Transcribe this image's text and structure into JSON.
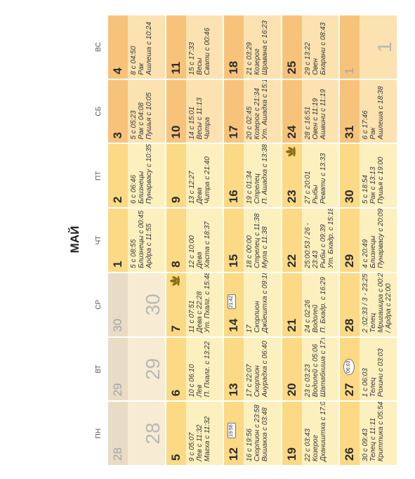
{
  "title": "МАЙ",
  "weekdays": [
    "ПН",
    "ВТ",
    "СР",
    "ЧТ",
    "ПТ",
    "СБ",
    "ВС"
  ],
  "weeks": [
    [
      {
        "num": "28",
        "grey": true,
        "big": "28"
      },
      {
        "num": "29",
        "grey": true,
        "big": "29"
      },
      {
        "num": "30",
        "grey": true,
        "big": "30"
      },
      {
        "num": "1",
        "color": "c1",
        "moon": "crescent-right",
        "lines": [
          "5 с 08:55",
          "Близнецы с 00:45",
          "Ардра с 11:55"
        ]
      },
      {
        "num": "2",
        "color": "c1",
        "moon": "crescent-right",
        "lines": [
          "6 с 06:46",
          "Близнецы",
          "Пунарвасу с 10:35"
        ]
      },
      {
        "num": "3",
        "color": "c2",
        "moon": "crescent-right",
        "lines": [
          "5 с 05:23",
          "Рак с 04:08",
          "Пушья с 10:05"
        ]
      },
      {
        "num": "4",
        "color": "c2",
        "moon": "crescent-right",
        "lines": [
          "8 с 04:50",
          "Рак",
          "Ашлеша с 10:24"
        ]
      }
    ],
    [
      {
        "num": "5",
        "color": "c1",
        "moon": "crescent-right",
        "lines": [
          "9 с 05:07",
          "Лев с 11:32",
          "Магха с 11:32"
        ]
      },
      {
        "num": "6",
        "color": "c1",
        "moon": "crescent-right",
        "lines": [
          "10 с 06:10",
          "Лев",
          "П. Пхалг. с 13:22"
        ]
      },
      {
        "num": "7",
        "color": "c1",
        "moon": "crescent-right",
        "lotus": true,
        "lines": [
          "11 с 07:51",
          "Дева с 22:28",
          "Ут. Пхалг. с 15:48"
        ]
      },
      {
        "num": "8",
        "color": "c1",
        "moon": "crescent-right",
        "lines": [
          "12 с 10:00",
          "Дева",
          "Хаста с 18:37"
        ]
      },
      {
        "num": "9",
        "color": "c1",
        "moon": "crescent-right",
        "lines": [
          "13 с 12:27",
          "Дева",
          "Читра с 21:40"
        ]
      },
      {
        "num": "10",
        "color": "c2",
        "moon": "crescent-right",
        "lines": [
          "14 с 15:01",
          "Весы с 11:13",
          "Читра"
        ]
      },
      {
        "num": "11",
        "color": "c2",
        "moon": "crescent-right",
        "lines": [
          "15 с 17:33",
          "Весы",
          "Свати с 00:46"
        ]
      }
    ],
    [
      {
        "num": "12",
        "color": "c1",
        "moon": "crescent-left",
        "badge": "19:56",
        "lines": [
          "16 с 19:56",
          "Скорпион с 23:58",
          "Вишакха с 03:48"
        ]
      },
      {
        "num": "13",
        "color": "c1",
        "moon": "crescent-left",
        "lines": [
          "17 с 22:07",
          "Скорпион",
          "Анурадха с 06:40"
        ]
      },
      {
        "num": "14",
        "color": "c1",
        "moon": "crescent-left",
        "badge": "21:42",
        "lines": [
          "17",
          "Скорпион",
          "Джйештха с 09:18"
        ]
      },
      {
        "num": "15",
        "color": "c1",
        "moon": "crescent-left",
        "lines": [
          "18 с 00:00",
          "Стрелец с 11:38",
          "Мула с 11:38"
        ]
      },
      {
        "num": "16",
        "color": "c1",
        "moon": "crescent-left",
        "lines": [
          "19 с 01:34",
          "Стрелец",
          "П. Ашадха с 13:38"
        ]
      },
      {
        "num": "17",
        "color": "c2",
        "moon": "crescent-left",
        "lines": [
          "20 с 02:45",
          "Козерог с 21:34",
          "Ут. Ашадха с 15:14"
        ]
      },
      {
        "num": "18",
        "color": "c2",
        "moon": "crescent-left",
        "lines": [
          "21 с 03:29",
          "Козерог",
          "Шравана с 16:23"
        ]
      }
    ],
    [
      {
        "num": "19",
        "color": "c1",
        "moon": "crescent-left",
        "lines": [
          "22 с 03:43",
          "Козерог",
          "Дхаништха с 17:00"
        ]
      },
      {
        "num": "20",
        "color": "c1",
        "moon": "crescent-left",
        "lines": [
          "23 с 03:23",
          "Водолей с 05:06",
          "Шатабхиша с 17:03"
        ]
      },
      {
        "num": "21",
        "color": "c1",
        "moon": "crescent-left",
        "lines": [
          "24 с 02:26",
          "Водолей",
          "П. Бхадр. с 16:29"
        ]
      },
      {
        "num": "22",
        "color": "c1",
        "moon": "crescent-left",
        "lines": [
          "25:00:53 / 26 -",
          "23:43",
          "Рыбы с 09:39",
          "Ут. Бхадр. с 15:18"
        ]
      },
      {
        "num": "23",
        "color": "c1",
        "moon": "crescent-left",
        "lotus": true,
        "lines": [
          "27 с 20:01",
          "Рыбы",
          "Ревати с 13:33"
        ]
      },
      {
        "num": "24",
        "color": "c2",
        "moon": "crescent-left",
        "lines": [
          "28 с 16:51",
          "Овен с 11:19",
          "Ашвини с 11:19"
        ]
      },
      {
        "num": "25",
        "color": "c2",
        "moon": "crescent-left",
        "lines": [
          "29 с 13:22",
          "Овен",
          "Бхарани с 08:43"
        ]
      }
    ],
    [
      {
        "num": "26",
        "color": "c1",
        "moon": "crescent-left",
        "lines": [
          "30 с 09:43",
          "Телец с 11:11",
          "Криттика с 05:54"
        ]
      },
      {
        "num": "27",
        "color": "c1",
        "moon": "none",
        "badge": "06:03",
        "badgeCircle": true,
        "lines": [
          "1 с 06:03",
          "Телец",
          "Рохини с 03:03"
        ]
      },
      {
        "num": "28",
        "color": "c1",
        "moon": "crescent-right",
        "lines": [
          "2 :02:33 / 3 - 23:25",
          "Телец",
          "Мригашира с 00:21",
          "/ Ардра с 22:00"
        ]
      },
      {
        "num": "29",
        "color": "c1",
        "moon": "crescent-right",
        "lines": [
          "4 с 20:49",
          "Близнецы",
          "Пунарвасу с 20:09"
        ]
      },
      {
        "num": "30",
        "color": "c1",
        "moon": "crescent-right",
        "lines": [
          "5 с 18:54",
          "Рак с 13:13",
          "Пушья с 19:00"
        ]
      },
      {
        "num": "31",
        "color": "c2",
        "moon": "crescent-right",
        "lines": [
          "6 с 17:46",
          "Рак",
          "Ашлеша с 18:38"
        ]
      },
      {
        "num": "1",
        "grey": true,
        "big": "1",
        "color": "c2",
        "moon": "crescent-right"
      }
    ]
  ]
}
